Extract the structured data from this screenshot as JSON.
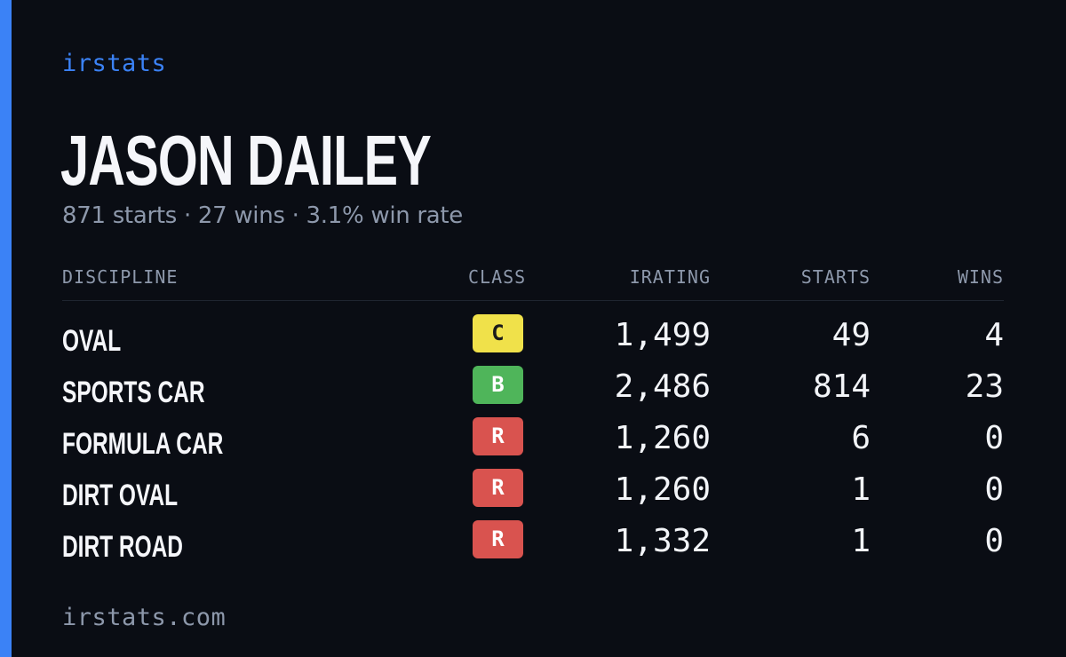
{
  "brand": "irstats",
  "driver": {
    "name": "JASON DAILEY",
    "summary": "871 starts · 27 wins · 3.1% win rate"
  },
  "table": {
    "headers": {
      "discipline": "DISCIPLINE",
      "class": "CLASS",
      "irating": "IRATING",
      "starts": "STARTS",
      "wins": "WINS"
    },
    "rows": [
      {
        "discipline": "OVAL",
        "class": "C",
        "class_color": "#f0e14a",
        "class_text_color": "#1a1a1a",
        "irating": "1,499",
        "starts": "49",
        "wins": "4"
      },
      {
        "discipline": "SPORTS CAR",
        "class": "B",
        "class_color": "#4fb55a",
        "class_text_color": "#ffffff",
        "irating": "2,486",
        "starts": "814",
        "wins": "23"
      },
      {
        "discipline": "FORMULA CAR",
        "class": "R",
        "class_color": "#d9534f",
        "class_text_color": "#ffffff",
        "irating": "1,260",
        "starts": "6",
        "wins": "0"
      },
      {
        "discipline": "DIRT OVAL",
        "class": "R",
        "class_color": "#d9534f",
        "class_text_color": "#ffffff",
        "irating": "1,260",
        "starts": "1",
        "wins": "0"
      },
      {
        "discipline": "DIRT ROAD",
        "class": "R",
        "class_color": "#d9534f",
        "class_text_color": "#ffffff",
        "irating": "1,332",
        "starts": "1",
        "wins": "0"
      }
    ]
  },
  "footer": "irstats.com",
  "colors": {
    "background": "#0a0d14",
    "accent": "#3b82f6",
    "muted": "#8d98ab"
  }
}
